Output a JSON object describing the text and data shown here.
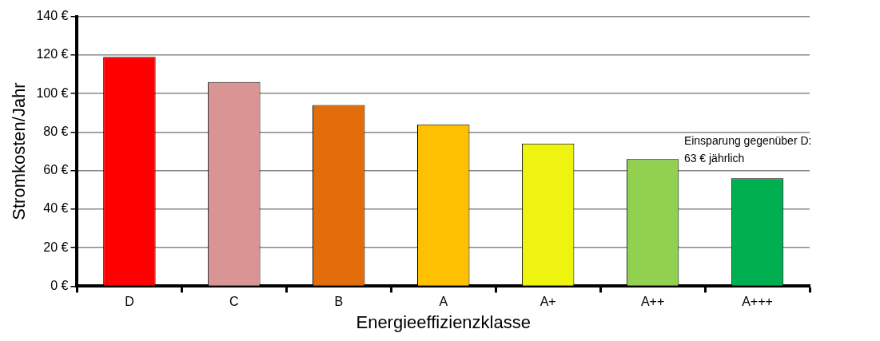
{
  "chart_data": {
    "type": "bar",
    "categories": [
      "D",
      "C",
      "B",
      "A",
      "A+",
      "A++",
      "A+++"
    ],
    "values": [
      119,
      106,
      94,
      84,
      74,
      66,
      56
    ],
    "colors": [
      "#ff0000",
      "#d99594",
      "#e36c0a",
      "#ffc000",
      "#eef30f",
      "#92d050",
      "#00b050"
    ],
    "xlabel": "Energieeffizienzklasse",
    "ylabel": "Stromkosten/Jahr",
    "ylim": [
      0,
      140
    ],
    "yticks": [
      {
        "value": 0,
        "label": "0 €"
      },
      {
        "value": 20,
        "label": "20 €"
      },
      {
        "value": 40,
        "label": "40 €"
      },
      {
        "value": 60,
        "label": "60 €"
      },
      {
        "value": 80,
        "label": "80 €"
      },
      {
        "value": 100,
        "label": "100 €"
      },
      {
        "value": 120,
        "label": "120 €"
      },
      {
        "value": 140,
        "label": "140 €"
      }
    ],
    "grid": "y",
    "annotations": [
      "Einsparung gegenüber D:\n63 € jährlich"
    ]
  }
}
